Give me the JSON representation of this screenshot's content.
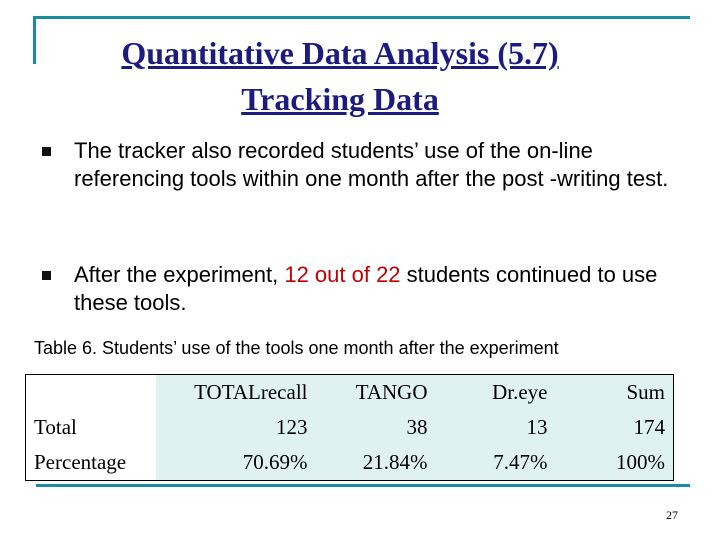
{
  "slide": {
    "title_line1": "Quantitative Data Analysis (5.7)",
    "title_line2": "Tracking Data",
    "bullets": [
      {
        "text": "The tracker also recorded students’ use of  the on-line referencing tools within one month after the post -writing test."
      },
      {
        "text_before": "After the experiment, ",
        "highlight": "12 out of 22",
        "text_after": " students continued to use these tools."
      }
    ],
    "caption": "Table 6. Students’ use of the tools one month after the experiment",
    "table": {
      "headers": [
        "TOTALrecall",
        "TANGO",
        "Dr.eye",
        "Sum"
      ],
      "rows": [
        {
          "label": "Total",
          "values": [
            "123",
            "38",
            "13",
            "174"
          ]
        },
        {
          "label": "Percentage",
          "values": [
            "70.69%",
            "21.84%",
            "7.47%",
            "100%"
          ]
        }
      ]
    },
    "page_number": "27",
    "colors": {
      "title": "#1b1b80",
      "accent_line": "#1a8ca0",
      "highlight": "#c00000",
      "table_fill": "#e0f1f1"
    }
  }
}
